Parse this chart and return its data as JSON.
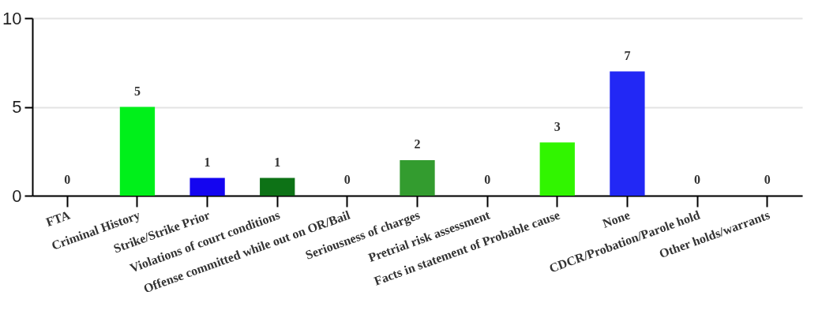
{
  "chart_data": {
    "type": "bar",
    "categories": [
      "FTA",
      "Criminal History",
      "Strike/Strike Prior",
      "Violations of court conditions",
      "Offense committed while out on OR/Bail",
      "Seriousness of charges",
      "Pretrial risk assessment",
      "Facts in statement of Probable cause",
      "None",
      "CDCR/Probation/Parole hold",
      "Other holds/warrants"
    ],
    "values": [
      0,
      5,
      1,
      1,
      0,
      2,
      0,
      3,
      7,
      0,
      0
    ],
    "colors": [
      null,
      "#00f01a",
      "#1405f0",
      "#0d7216",
      null,
      "#339c2f",
      null,
      "#31f500",
      "#2228f5",
      null,
      null
    ],
    "ylim": [
      0,
      10
    ],
    "yticks": [
      0,
      5,
      10
    ],
    "grid": "y",
    "data_labels": true
  }
}
